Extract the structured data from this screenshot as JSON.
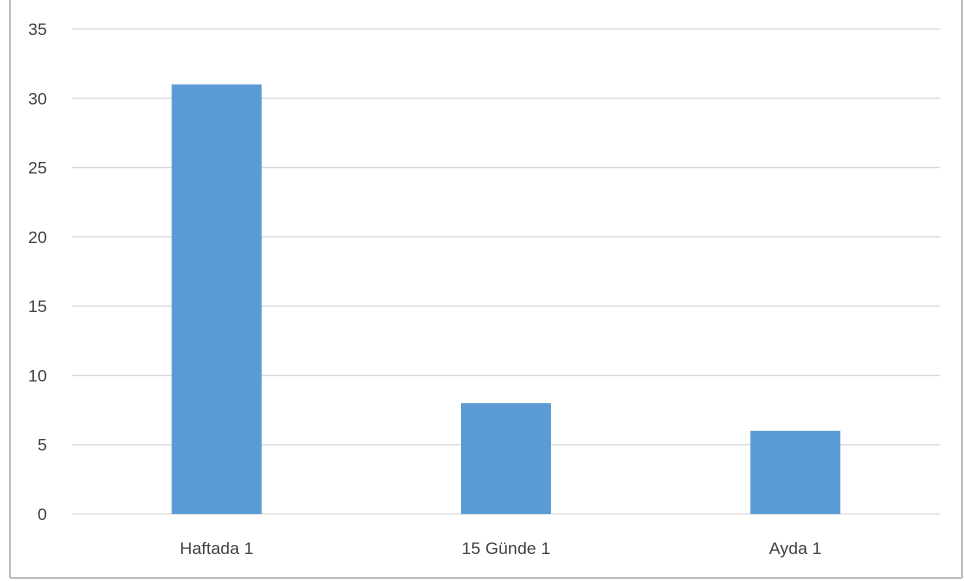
{
  "chart_data": {
    "type": "bar",
    "title": "",
    "xlabel": "",
    "ylabel": "",
    "categories": [
      "Haftada 1",
      "15 Günde 1",
      "Ayda 1"
    ],
    "values": [
      31,
      8,
      6
    ],
    "ylim": [
      0,
      35
    ],
    "yticks": [
      "0",
      "5",
      "10",
      "15",
      "20",
      "25",
      "30",
      "35"
    ],
    "grid": true,
    "legend": "none",
    "colors": {
      "bar": "#5b9bd5",
      "grid": "#d9d9d9",
      "text": "#404040",
      "frame": "#bfbfbf"
    }
  }
}
